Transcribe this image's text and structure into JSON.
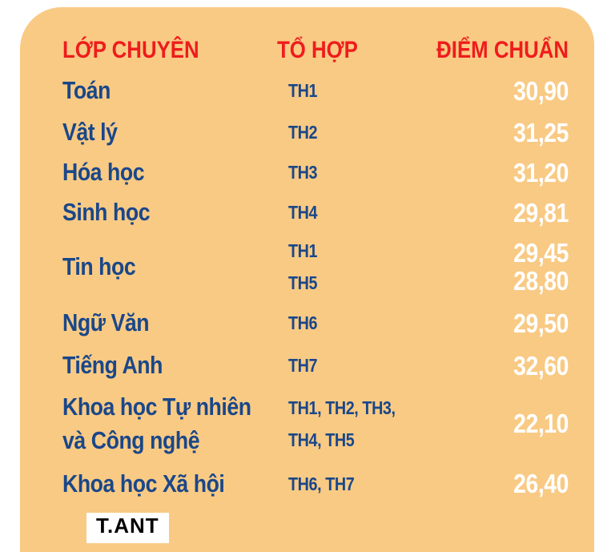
{
  "colors": {
    "card_bg": "#F9CA84",
    "header_text": "#EE1C1C",
    "body_text": "#1A4789",
    "score_text": "#FFFFFF"
  },
  "table": {
    "header": {
      "subject": "LỚP CHUYÊN",
      "combo": "TỔ HỢP",
      "score": "ĐIỂM CHUẨN"
    },
    "rows": [
      {
        "subject": [
          "Toán"
        ],
        "combos": [
          "TH1"
        ],
        "scores": [
          "30,90"
        ]
      },
      {
        "subject": [
          "Vật lý"
        ],
        "combos": [
          "TH2"
        ],
        "scores": [
          "31,25"
        ]
      },
      {
        "subject": [
          "Hóa học"
        ],
        "combos": [
          "TH3"
        ],
        "scores": [
          "31,20"
        ]
      },
      {
        "subject": [
          "Sinh học"
        ],
        "combos": [
          "TH4"
        ],
        "scores": [
          "29,81"
        ]
      },
      {
        "subject": [
          "Tin học"
        ],
        "combos": [
          "TH1",
          "TH5"
        ],
        "scores": [
          "29,45",
          "28,80"
        ]
      },
      {
        "subject": [
          "Ngữ Văn"
        ],
        "combos": [
          "TH6"
        ],
        "scores": [
          "29,50"
        ]
      },
      {
        "subject": [
          "Tiếng Anh"
        ],
        "combos": [
          "TH7"
        ],
        "scores": [
          "32,60"
        ]
      },
      {
        "subject": [
          "Khoa học Tự nhiên",
          "và Công nghệ"
        ],
        "combos": [
          "TH1, TH2, TH3,",
          "TH4, TH5"
        ],
        "scores": [
          "22,10"
        ]
      },
      {
        "subject": [
          "Khoa học Xã hội"
        ],
        "combos": [
          "TH6, TH7"
        ],
        "scores": [
          "26,40"
        ]
      }
    ]
  },
  "watermark": {
    "text": "T.ANT"
  },
  "chart_data": {
    "type": "table",
    "title": "",
    "columns": [
      "LỚP CHUYÊN",
      "TỔ HỢP",
      "ĐIỂM CHUẨN"
    ],
    "rows": [
      [
        "Toán",
        "TH1",
        "30,90"
      ],
      [
        "Vật lý",
        "TH2",
        "31,25"
      ],
      [
        "Hóa học",
        "TH3",
        "31,20"
      ],
      [
        "Sinh học",
        "TH4",
        "29,81"
      ],
      [
        "Tin học",
        "TH1",
        "29,45"
      ],
      [
        "Tin học",
        "TH5",
        "28,80"
      ],
      [
        "Ngữ Văn",
        "TH6",
        "29,50"
      ],
      [
        "Tiếng Anh",
        "TH7",
        "32,60"
      ],
      [
        "Khoa học Tự nhiên và Công nghệ",
        "TH1, TH2, TH3, TH4, TH5",
        "22,10"
      ],
      [
        "Khoa học Xã hội",
        "TH6, TH7",
        "26,40"
      ]
    ],
    "layout_hints": {
      "score_column_align": "right",
      "background": "#F9CA84",
      "header_color": "#EE1C1C",
      "decimal_separator": ","
    }
  }
}
